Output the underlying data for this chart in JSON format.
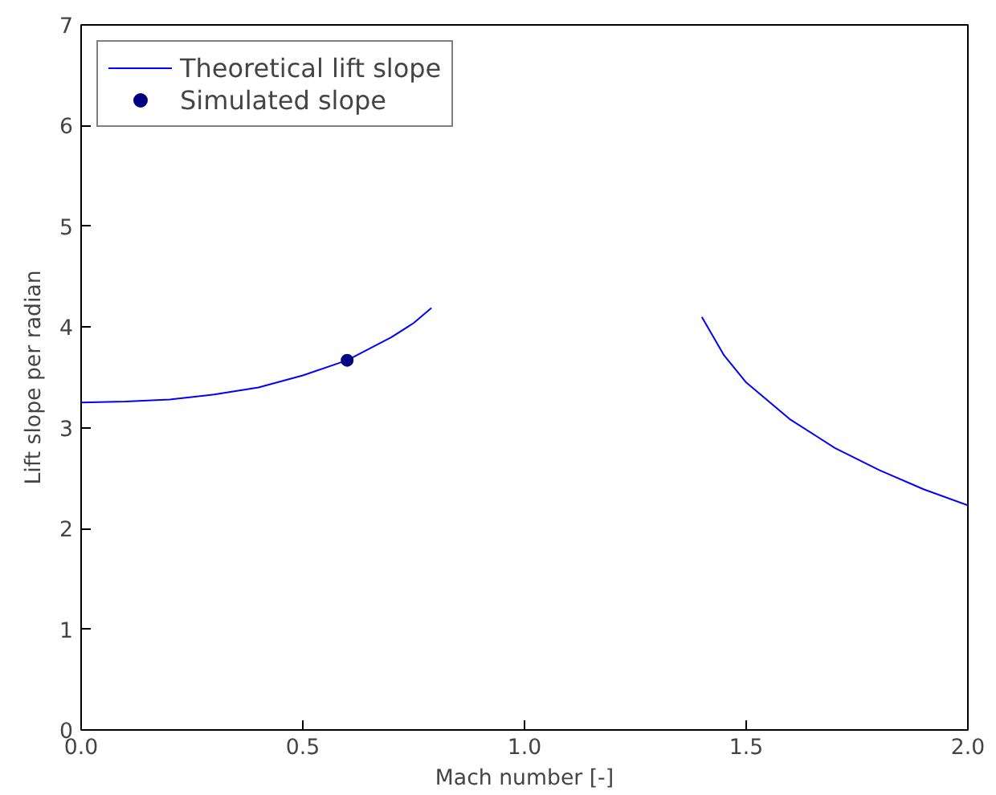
{
  "chart_data": {
    "type": "line",
    "xlabel": "Mach number [-]",
    "ylabel": "Lift slope per radian",
    "xlim": [
      0,
      2
    ],
    "ylim": [
      0,
      7
    ],
    "xticks": [
      {
        "value": 0,
        "label": "0.0"
      },
      {
        "value": 0.5,
        "label": "0.5"
      },
      {
        "value": 1,
        "label": "1.0"
      },
      {
        "value": 1.5,
        "label": "1.5"
      },
      {
        "value": 2,
        "label": "2.0"
      }
    ],
    "yticks": [
      0,
      1,
      2,
      3,
      4,
      5,
      6,
      7
    ],
    "grid": false,
    "legend": "top left",
    "series": [
      {
        "name": "Theoretical lift slope",
        "color": "#0000ff",
        "x": [
          0,
          0.1,
          0.2,
          0.3,
          0.4,
          0.5,
          0.6,
          0.7,
          0.75,
          0.79,
          0.8,
          1.4,
          1.45,
          1.5,
          1.6,
          1.7,
          1.8,
          1.9,
          2.0
        ],
        "values": [
          3.25,
          3.26,
          3.28,
          3.33,
          3.4,
          3.52,
          3.67,
          3.9,
          4.04,
          4.19,
          null,
          4.1,
          3.72,
          3.45,
          3.08,
          2.8,
          2.58,
          2.39,
          2.23
        ]
      },
      {
        "name": "Simulated slope",
        "type": "scatter",
        "marker": "circle",
        "color": "#000080",
        "x": [
          0.6
        ],
        "values": [
          3.67
        ]
      }
    ]
  }
}
